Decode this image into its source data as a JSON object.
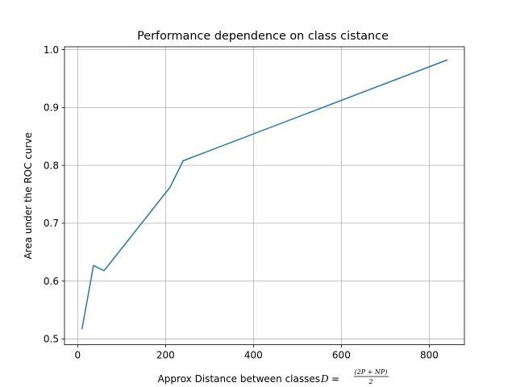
{
  "chart_data": {
    "type": "line",
    "title": "Performance dependence on class cistance",
    "xlabel_text": "Approx Distance between classes ",
    "xlabel_math_lhs": "D",
    "xlabel_math_eq": "=",
    "xlabel_math_num": "(2P + NP)",
    "xlabel_math_den": "2",
    "ylabel": "Area under the ROC curve",
    "xlim": [
      -30,
      880
    ],
    "ylim": [
      0.49,
      1.005
    ],
    "xticks": [
      0,
      200,
      400,
      600,
      800
    ],
    "xtick_labels": [
      "0",
      "200",
      "400",
      "600",
      "800"
    ],
    "yticks": [
      0.5,
      0.6,
      0.7,
      0.8,
      0.9,
      1.0
    ],
    "ytick_labels": [
      "0.5",
      "0.6",
      "0.7",
      "0.8",
      "0.9",
      "1.0"
    ],
    "grid": true,
    "series": [
      {
        "color": "#1f77b4",
        "x": [
          10,
          36,
          60,
          210,
          240,
          840
        ],
        "y": [
          0.518,
          0.627,
          0.618,
          0.762,
          0.808,
          0.982
        ]
      }
    ]
  }
}
